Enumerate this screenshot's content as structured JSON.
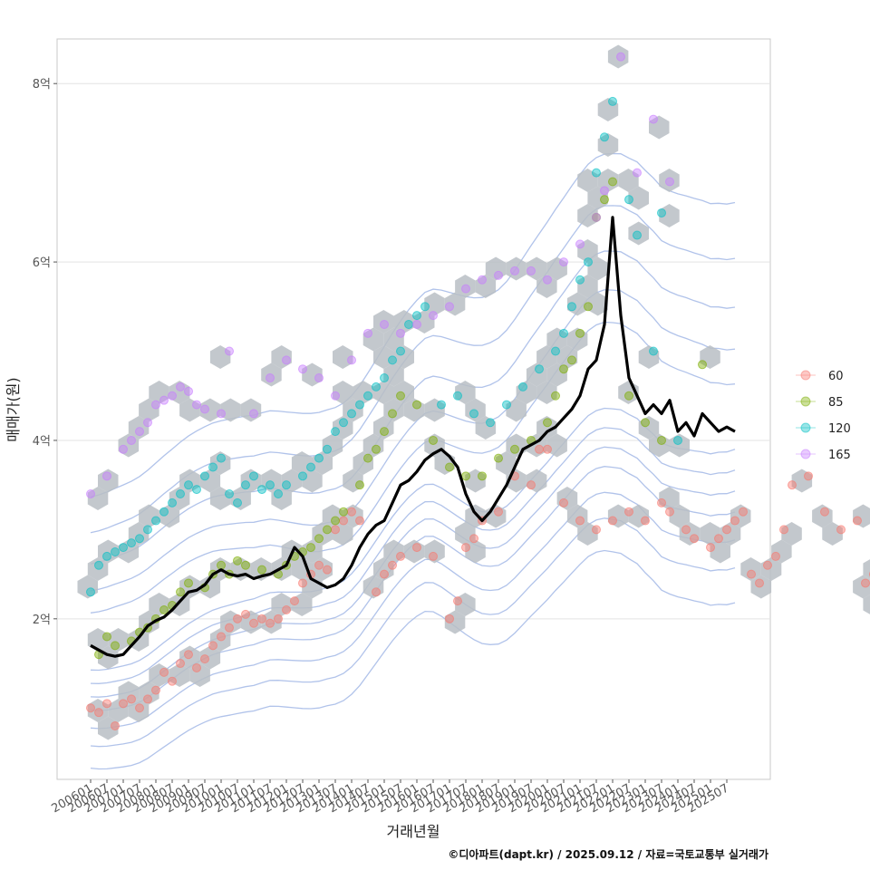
{
  "chart_data": {
    "type": "scatter",
    "x_unit": "거래년월",
    "xlabel": "거래년월",
    "ylabel": "매매가(원)",
    "ylim": [
      0.2,
      8.5
    ],
    "y_ticks": [
      {
        "value": 2,
        "label": "2억"
      },
      {
        "value": 4,
        "label": "4억"
      },
      {
        "value": 6,
        "label": "6억"
      },
      {
        "value": 8,
        "label": "8억"
      }
    ],
    "x_ticks": [
      "200601",
      "200607",
      "200701",
      "200707",
      "200801",
      "200807",
      "200901",
      "200907",
      "201001",
      "201007",
      "201101",
      "201107",
      "201201",
      "201207",
      "201301",
      "201307",
      "201401",
      "201407",
      "201501",
      "201507",
      "201601",
      "201607",
      "201701",
      "201707",
      "201801",
      "201807",
      "201901",
      "201907",
      "202001",
      "202007",
      "202101",
      "202107",
      "202201",
      "202207",
      "202301",
      "202307",
      "202401",
      "202407",
      "202501",
      "202507"
    ],
    "legend": {
      "position": "right",
      "entries": [
        {
          "label": "60",
          "color": "#F8766D"
        },
        {
          "label": "85",
          "color": "#7CAE00"
        },
        {
          "label": "120",
          "color": "#00BFC4"
        },
        {
          "label": "165",
          "color": "#C77CFF"
        }
      ]
    },
    "series": [
      {
        "name": "60",
        "color": "#F8766D",
        "points": [
          [
            0,
            1.0
          ],
          [
            1,
            0.95
          ],
          [
            2,
            1.05
          ],
          [
            3,
            0.8
          ],
          [
            4,
            1.05
          ],
          [
            5,
            1.1
          ],
          [
            6,
            1.0
          ],
          [
            7,
            1.1
          ],
          [
            8,
            1.2
          ],
          [
            9,
            1.4
          ],
          [
            10,
            1.3
          ],
          [
            11,
            1.5
          ],
          [
            12,
            1.6
          ],
          [
            13,
            1.45
          ],
          [
            14,
            1.55
          ],
          [
            15,
            1.7
          ],
          [
            16,
            1.8
          ],
          [
            17,
            1.9
          ],
          [
            18,
            2.0
          ],
          [
            19,
            2.05
          ],
          [
            20,
            1.95
          ],
          [
            21,
            2.0
          ],
          [
            22,
            1.95
          ],
          [
            23,
            2.0
          ],
          [
            24,
            2.1
          ],
          [
            25,
            2.2
          ],
          [
            26,
            2.4
          ],
          [
            27,
            2.5
          ],
          [
            28,
            2.6
          ],
          [
            29,
            2.55
          ],
          [
            30,
            3.0
          ],
          [
            31,
            3.1
          ],
          [
            32,
            3.2
          ],
          [
            33,
            3.1
          ],
          [
            35,
            2.3
          ],
          [
            36,
            2.5
          ],
          [
            37,
            2.6
          ],
          [
            38,
            2.7
          ],
          [
            40,
            2.8
          ],
          [
            42,
            2.7
          ],
          [
            44,
            2.0
          ],
          [
            45,
            2.2
          ],
          [
            46,
            2.8
          ],
          [
            47,
            2.9
          ],
          [
            48,
            3.1
          ],
          [
            50,
            3.2
          ],
          [
            52,
            3.6
          ],
          [
            54,
            3.5
          ],
          [
            55,
            3.9
          ],
          [
            56,
            3.9
          ],
          [
            58,
            3.3
          ],
          [
            60,
            3.1
          ],
          [
            62,
            3.0
          ],
          [
            64,
            3.1
          ],
          [
            66,
            3.2
          ],
          [
            68,
            3.1
          ],
          [
            70,
            3.3
          ],
          [
            71,
            3.2
          ],
          [
            73,
            3.0
          ],
          [
            74,
            2.9
          ],
          [
            76,
            2.8
          ],
          [
            77,
            2.9
          ],
          [
            78,
            3.0
          ],
          [
            79,
            3.1
          ],
          [
            80,
            3.2
          ],
          [
            81,
            2.5
          ],
          [
            82,
            2.4
          ],
          [
            83,
            2.6
          ],
          [
            84,
            2.7
          ],
          [
            85,
            3.0
          ],
          [
            86,
            3.5
          ],
          [
            88,
            3.6
          ],
          [
            90,
            3.2
          ],
          [
            92,
            3.0
          ],
          [
            94,
            3.1
          ],
          [
            95,
            2.4
          ],
          [
            96,
            2.5
          ],
          [
            97,
            2.2
          ],
          [
            98,
            2.3
          ]
        ]
      },
      {
        "name": "85",
        "color": "#7CAE00",
        "points": [
          [
            1,
            1.6
          ],
          [
            2,
            1.8
          ],
          [
            3,
            1.7
          ],
          [
            5,
            1.75
          ],
          [
            6,
            1.85
          ],
          [
            7,
            1.9
          ],
          [
            8,
            2.0
          ],
          [
            9,
            2.1
          ],
          [
            10,
            2.15
          ],
          [
            11,
            2.3
          ],
          [
            12,
            2.4
          ],
          [
            14,
            2.35
          ],
          [
            15,
            2.5
          ],
          [
            16,
            2.6
          ],
          [
            17,
            2.5
          ],
          [
            18,
            2.65
          ],
          [
            19,
            2.6
          ],
          [
            21,
            2.55
          ],
          [
            23,
            2.5
          ],
          [
            24,
            2.6
          ],
          [
            25,
            2.7
          ],
          [
            26,
            2.75
          ],
          [
            27,
            2.8
          ],
          [
            28,
            2.9
          ],
          [
            29,
            3.0
          ],
          [
            30,
            3.1
          ],
          [
            31,
            3.2
          ],
          [
            33,
            3.5
          ],
          [
            34,
            3.8
          ],
          [
            35,
            3.9
          ],
          [
            36,
            4.1
          ],
          [
            37,
            4.3
          ],
          [
            38,
            4.5
          ],
          [
            40,
            4.4
          ],
          [
            42,
            4.0
          ],
          [
            44,
            3.7
          ],
          [
            46,
            3.6
          ],
          [
            48,
            3.6
          ],
          [
            50,
            3.8
          ],
          [
            52,
            3.9
          ],
          [
            54,
            4.0
          ],
          [
            56,
            4.2
          ],
          [
            57,
            4.5
          ],
          [
            58,
            4.8
          ],
          [
            59,
            4.9
          ],
          [
            60,
            5.2
          ],
          [
            61,
            5.5
          ],
          [
            62,
            6.5
          ],
          [
            63,
            6.7
          ],
          [
            64,
            6.9
          ],
          [
            66,
            4.5
          ],
          [
            68,
            4.2
          ],
          [
            70,
            4.0
          ],
          [
            75,
            4.85
          ]
        ]
      },
      {
        "name": "120",
        "color": "#00BFC4",
        "points": [
          [
            0,
            2.3
          ],
          [
            1,
            2.6
          ],
          [
            2,
            2.7
          ],
          [
            3,
            2.75
          ],
          [
            4,
            2.8
          ],
          [
            5,
            2.85
          ],
          [
            6,
            2.9
          ],
          [
            7,
            3.0
          ],
          [
            8,
            3.1
          ],
          [
            9,
            3.2
          ],
          [
            10,
            3.3
          ],
          [
            11,
            3.4
          ],
          [
            12,
            3.5
          ],
          [
            13,
            3.45
          ],
          [
            14,
            3.6
          ],
          [
            15,
            3.7
          ],
          [
            16,
            3.8
          ],
          [
            17,
            3.4
          ],
          [
            18,
            3.3
          ],
          [
            19,
            3.5
          ],
          [
            20,
            3.6
          ],
          [
            21,
            3.45
          ],
          [
            22,
            3.5
          ],
          [
            23,
            3.4
          ],
          [
            24,
            3.5
          ],
          [
            26,
            3.6
          ],
          [
            27,
            3.7
          ],
          [
            28,
            3.8
          ],
          [
            29,
            3.9
          ],
          [
            30,
            4.1
          ],
          [
            31,
            4.2
          ],
          [
            32,
            4.3
          ],
          [
            33,
            4.4
          ],
          [
            34,
            4.5
          ],
          [
            35,
            4.6
          ],
          [
            36,
            4.7
          ],
          [
            37,
            4.9
          ],
          [
            38,
            5.0
          ],
          [
            39,
            5.3
          ],
          [
            40,
            5.4
          ],
          [
            41,
            5.5
          ],
          [
            43,
            4.4
          ],
          [
            45,
            4.5
          ],
          [
            47,
            4.3
          ],
          [
            49,
            4.2
          ],
          [
            51,
            4.4
          ],
          [
            53,
            4.6
          ],
          [
            55,
            4.8
          ],
          [
            57,
            5.0
          ],
          [
            58,
            5.2
          ],
          [
            59,
            5.5
          ],
          [
            60,
            5.8
          ],
          [
            61,
            6.0
          ],
          [
            62,
            7.0
          ],
          [
            63,
            7.4
          ],
          [
            64,
            7.8
          ],
          [
            66,
            6.7
          ],
          [
            67,
            6.3
          ],
          [
            69,
            5.0
          ],
          [
            70,
            6.55
          ],
          [
            72,
            4.0
          ]
        ]
      },
      {
        "name": "165",
        "color": "#C77CFF",
        "points": [
          [
            0,
            3.4
          ],
          [
            2,
            3.6
          ],
          [
            4,
            3.9
          ],
          [
            5,
            4.0
          ],
          [
            6,
            4.1
          ],
          [
            7,
            4.2
          ],
          [
            8,
            4.4
          ],
          [
            9,
            4.45
          ],
          [
            10,
            4.5
          ],
          [
            11,
            4.6
          ],
          [
            12,
            4.55
          ],
          [
            13,
            4.4
          ],
          [
            14,
            4.35
          ],
          [
            16,
            4.3
          ],
          [
            17,
            5.0
          ],
          [
            20,
            4.3
          ],
          [
            22,
            4.7
          ],
          [
            24,
            4.9
          ],
          [
            26,
            4.8
          ],
          [
            28,
            4.7
          ],
          [
            30,
            4.5
          ],
          [
            32,
            4.9
          ],
          [
            34,
            5.2
          ],
          [
            36,
            5.3
          ],
          [
            38,
            5.2
          ],
          [
            40,
            5.3
          ],
          [
            42,
            5.4
          ],
          [
            44,
            5.5
          ],
          [
            46,
            5.7
          ],
          [
            48,
            5.8
          ],
          [
            50,
            5.85
          ],
          [
            52,
            5.9
          ],
          [
            54,
            5.9
          ],
          [
            56,
            5.8
          ],
          [
            58,
            6.0
          ],
          [
            60,
            6.2
          ],
          [
            62,
            6.5
          ],
          [
            63,
            6.8
          ],
          [
            65,
            8.3
          ],
          [
            67,
            7.0
          ],
          [
            69,
            7.6
          ],
          [
            71,
            6.9
          ]
        ]
      }
    ],
    "median_line": {
      "color": "#000000",
      "points": [
        [
          0,
          1.7
        ],
        [
          1,
          1.65
        ],
        [
          2,
          1.6
        ],
        [
          3,
          1.58
        ],
        [
          4,
          1.6
        ],
        [
          5,
          1.7
        ],
        [
          6,
          1.8
        ],
        [
          7,
          1.92
        ],
        [
          8,
          1.98
        ],
        [
          9,
          2.02
        ],
        [
          10,
          2.1
        ],
        [
          11,
          2.2
        ],
        [
          12,
          2.3
        ],
        [
          13,
          2.32
        ],
        [
          14,
          2.38
        ],
        [
          15,
          2.5
        ],
        [
          16,
          2.55
        ],
        [
          17,
          2.5
        ],
        [
          18,
          2.48
        ],
        [
          19,
          2.5
        ],
        [
          20,
          2.45
        ],
        [
          21,
          2.48
        ],
        [
          22,
          2.5
        ],
        [
          23,
          2.55
        ],
        [
          24,
          2.6
        ],
        [
          25,
          2.8
        ],
        [
          26,
          2.7
        ],
        [
          27,
          2.45
        ],
        [
          28,
          2.4
        ],
        [
          29,
          2.35
        ],
        [
          30,
          2.38
        ],
        [
          31,
          2.45
        ],
        [
          32,
          2.6
        ],
        [
          33,
          2.8
        ],
        [
          34,
          2.95
        ],
        [
          35,
          3.05
        ],
        [
          36,
          3.1
        ],
        [
          37,
          3.3
        ],
        [
          38,
          3.5
        ],
        [
          39,
          3.55
        ],
        [
          40,
          3.65
        ],
        [
          41,
          3.78
        ],
        [
          42,
          3.85
        ],
        [
          43,
          3.9
        ],
        [
          44,
          3.82
        ],
        [
          45,
          3.7
        ],
        [
          46,
          3.4
        ],
        [
          47,
          3.2
        ],
        [
          48,
          3.1
        ],
        [
          49,
          3.2
        ],
        [
          50,
          3.35
        ],
        [
          51,
          3.5
        ],
        [
          52,
          3.7
        ],
        [
          53,
          3.9
        ],
        [
          54,
          3.95
        ],
        [
          55,
          4.0
        ],
        [
          56,
          4.1
        ],
        [
          57,
          4.15
        ],
        [
          58,
          4.25
        ],
        [
          59,
          4.35
        ],
        [
          60,
          4.5
        ],
        [
          61,
          4.8
        ],
        [
          62,
          4.9
        ],
        [
          63,
          5.3
        ],
        [
          64,
          6.5
        ],
        [
          65,
          5.4
        ],
        [
          66,
          4.7
        ],
        [
          67,
          4.5
        ],
        [
          68,
          4.3
        ],
        [
          69,
          4.4
        ],
        [
          70,
          4.3
        ],
        [
          71,
          4.45
        ],
        [
          72,
          4.1
        ],
        [
          73,
          4.2
        ],
        [
          74,
          4.05
        ],
        [
          75,
          4.3
        ],
        [
          76,
          4.2
        ],
        [
          77,
          4.1
        ],
        [
          78,
          4.15
        ],
        [
          79,
          4.1
        ]
      ]
    }
  },
  "caption": "©디아파트(dapt.kr) / 2025.09.12 / 자료=국토교통부 실거래가"
}
